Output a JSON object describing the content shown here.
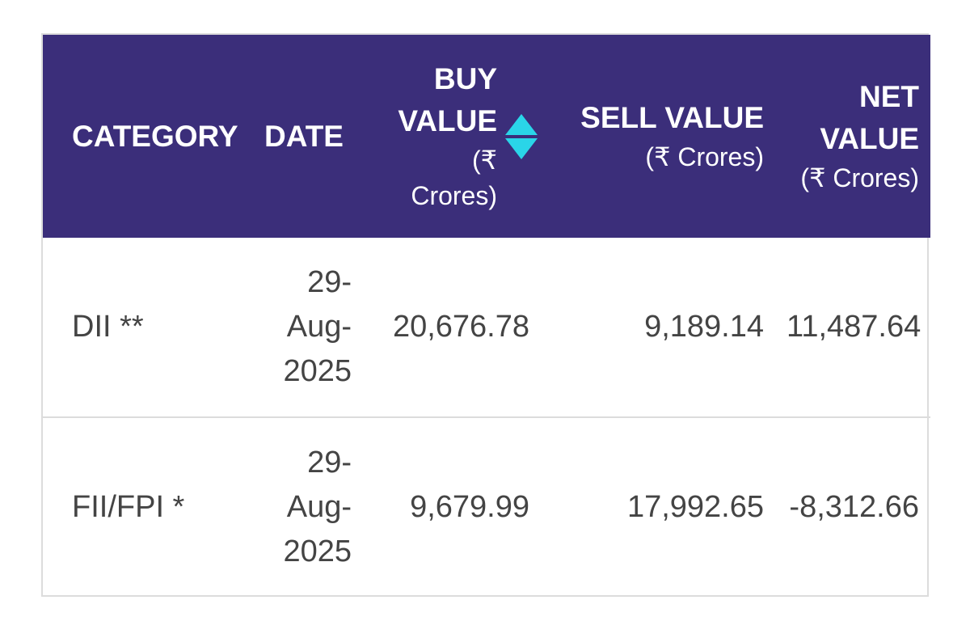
{
  "table": {
    "headers": {
      "category": "CATEGORY",
      "date": "DATE",
      "buy_title": "BUY VALUE",
      "buy_unit": "(₹ Crores)",
      "sell_title": "SELL VALUE",
      "sell_unit": "(₹ Crores)",
      "net_title": "NET VALUE",
      "net_unit": "(₹ Crores)"
    },
    "sort_icon": "sort-updown-icon",
    "rows": [
      {
        "category": "DII **",
        "date": "29-Aug-2025",
        "buy": "20,676.78",
        "sell": "9,189.14",
        "net": "11,487.64"
      },
      {
        "category": "FII/FPI *",
        "date": "29-Aug-2025",
        "buy": "9,679.99",
        "sell": "17,992.65",
        "net": "-8,312.66"
      }
    ]
  },
  "colors": {
    "header_bg": "#3b2e7a",
    "header_text": "#ffffff",
    "sort_icon": "#2ad5e8",
    "body_text": "#444444"
  }
}
